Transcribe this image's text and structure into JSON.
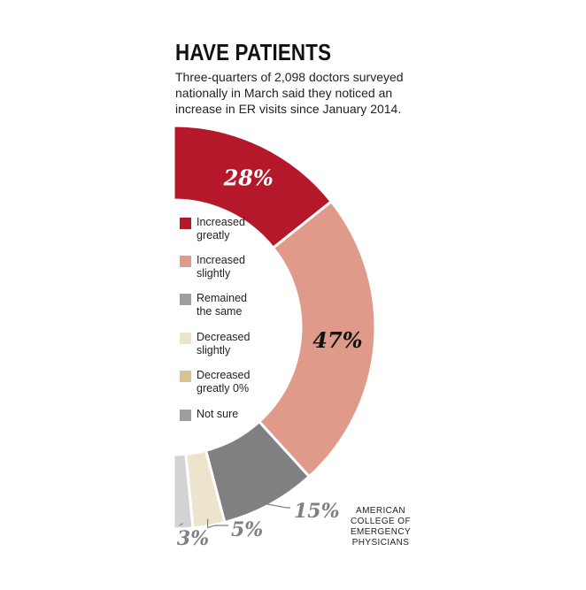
{
  "header": {
    "title": "HAVE PATIENTS",
    "subtitle": "Three-quarters of 2,098 doctors surveyed nationally in March said they noticed an increase in ER visits since January 2014."
  },
  "source": "AMERICAN\nCOLLEGE OF\nEMERGENCY\nPHYSICIANS",
  "chart_data": {
    "type": "pie",
    "variant": "half-donut",
    "categories": [
      "Increased greatly",
      "Increased slightly",
      "Remained the same",
      "Decreased slightly",
      "Decreased greatly",
      "Not sure"
    ],
    "values": [
      28,
      47,
      15,
      5,
      0,
      3
    ],
    "value_labels": [
      "28%",
      "47%",
      "15%",
      "5%",
      "",
      "3%"
    ],
    "legend_labels": [
      "Increased\ngreatly",
      "Increased\nslightly",
      "Remained\nthe same",
      "Decreased\nslightly",
      "Decreased\ngreatly 0%",
      "Not sure"
    ],
    "colors": [
      "#b5182a",
      "#e09a8a",
      "#808083",
      "#ece4cc",
      "#d7c48e",
      "#d3d3d5"
    ],
    "legend_swatch_colors": [
      "#b5182a",
      "#e09a8a",
      "#9d9d9f",
      "#ece4cc",
      "#d7c48e",
      "#9d9d9f"
    ],
    "label_colors": [
      "#ffffff",
      "#111111",
      "#808083",
      "#808083",
      "#808083",
      "#808083"
    ],
    "legend_placement": "inside-left"
  }
}
